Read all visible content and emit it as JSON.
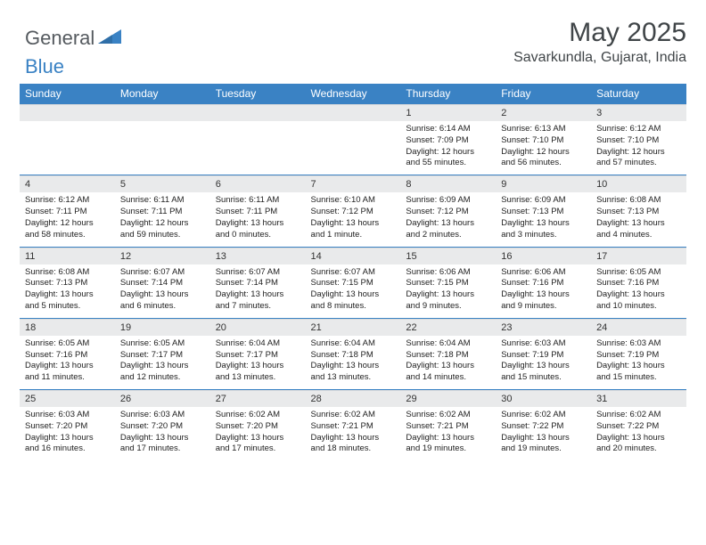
{
  "brand": {
    "name_part1": "General",
    "name_part2": "Blue",
    "accent_color": "#3a82c4",
    "text_color": "#555a5f"
  },
  "header": {
    "month_title": "May 2025",
    "location": "Savarkundla, Gujarat, India"
  },
  "colors": {
    "header_bg": "#3a82c4",
    "header_text": "#ffffff",
    "daynum_bg": "#e9eaeb",
    "body_text": "#222222",
    "page_bg": "#ffffff",
    "rule": "#3a82c4"
  },
  "daynames": [
    "Sunday",
    "Monday",
    "Tuesday",
    "Wednesday",
    "Thursday",
    "Friday",
    "Saturday"
  ],
  "weeks": [
    [
      null,
      null,
      null,
      null,
      {
        "n": "1",
        "sunrise": "6:14 AM",
        "sunset": "7:09 PM",
        "daylight": "12 hours and 55 minutes."
      },
      {
        "n": "2",
        "sunrise": "6:13 AM",
        "sunset": "7:10 PM",
        "daylight": "12 hours and 56 minutes."
      },
      {
        "n": "3",
        "sunrise": "6:12 AM",
        "sunset": "7:10 PM",
        "daylight": "12 hours and 57 minutes."
      }
    ],
    [
      {
        "n": "4",
        "sunrise": "6:12 AM",
        "sunset": "7:11 PM",
        "daylight": "12 hours and 58 minutes."
      },
      {
        "n": "5",
        "sunrise": "6:11 AM",
        "sunset": "7:11 PM",
        "daylight": "12 hours and 59 minutes."
      },
      {
        "n": "6",
        "sunrise": "6:11 AM",
        "sunset": "7:11 PM",
        "daylight": "13 hours and 0 minutes."
      },
      {
        "n": "7",
        "sunrise": "6:10 AM",
        "sunset": "7:12 PM",
        "daylight": "13 hours and 1 minute."
      },
      {
        "n": "8",
        "sunrise": "6:09 AM",
        "sunset": "7:12 PM",
        "daylight": "13 hours and 2 minutes."
      },
      {
        "n": "9",
        "sunrise": "6:09 AM",
        "sunset": "7:13 PM",
        "daylight": "13 hours and 3 minutes."
      },
      {
        "n": "10",
        "sunrise": "6:08 AM",
        "sunset": "7:13 PM",
        "daylight": "13 hours and 4 minutes."
      }
    ],
    [
      {
        "n": "11",
        "sunrise": "6:08 AM",
        "sunset": "7:13 PM",
        "daylight": "13 hours and 5 minutes."
      },
      {
        "n": "12",
        "sunrise": "6:07 AM",
        "sunset": "7:14 PM",
        "daylight": "13 hours and 6 minutes."
      },
      {
        "n": "13",
        "sunrise": "6:07 AM",
        "sunset": "7:14 PM",
        "daylight": "13 hours and 7 minutes."
      },
      {
        "n": "14",
        "sunrise": "6:07 AM",
        "sunset": "7:15 PM",
        "daylight": "13 hours and 8 minutes."
      },
      {
        "n": "15",
        "sunrise": "6:06 AM",
        "sunset": "7:15 PM",
        "daylight": "13 hours and 9 minutes."
      },
      {
        "n": "16",
        "sunrise": "6:06 AM",
        "sunset": "7:16 PM",
        "daylight": "13 hours and 9 minutes."
      },
      {
        "n": "17",
        "sunrise": "6:05 AM",
        "sunset": "7:16 PM",
        "daylight": "13 hours and 10 minutes."
      }
    ],
    [
      {
        "n": "18",
        "sunrise": "6:05 AM",
        "sunset": "7:16 PM",
        "daylight": "13 hours and 11 minutes."
      },
      {
        "n": "19",
        "sunrise": "6:05 AM",
        "sunset": "7:17 PM",
        "daylight": "13 hours and 12 minutes."
      },
      {
        "n": "20",
        "sunrise": "6:04 AM",
        "sunset": "7:17 PM",
        "daylight": "13 hours and 13 minutes."
      },
      {
        "n": "21",
        "sunrise": "6:04 AM",
        "sunset": "7:18 PM",
        "daylight": "13 hours and 13 minutes."
      },
      {
        "n": "22",
        "sunrise": "6:04 AM",
        "sunset": "7:18 PM",
        "daylight": "13 hours and 14 minutes."
      },
      {
        "n": "23",
        "sunrise": "6:03 AM",
        "sunset": "7:19 PM",
        "daylight": "13 hours and 15 minutes."
      },
      {
        "n": "24",
        "sunrise": "6:03 AM",
        "sunset": "7:19 PM",
        "daylight": "13 hours and 15 minutes."
      }
    ],
    [
      {
        "n": "25",
        "sunrise": "6:03 AM",
        "sunset": "7:20 PM",
        "daylight": "13 hours and 16 minutes."
      },
      {
        "n": "26",
        "sunrise": "6:03 AM",
        "sunset": "7:20 PM",
        "daylight": "13 hours and 17 minutes."
      },
      {
        "n": "27",
        "sunrise": "6:02 AM",
        "sunset": "7:20 PM",
        "daylight": "13 hours and 17 minutes."
      },
      {
        "n": "28",
        "sunrise": "6:02 AM",
        "sunset": "7:21 PM",
        "daylight": "13 hours and 18 minutes."
      },
      {
        "n": "29",
        "sunrise": "6:02 AM",
        "sunset": "7:21 PM",
        "daylight": "13 hours and 19 minutes."
      },
      {
        "n": "30",
        "sunrise": "6:02 AM",
        "sunset": "7:22 PM",
        "daylight": "13 hours and 19 minutes."
      },
      {
        "n": "31",
        "sunrise": "6:02 AM",
        "sunset": "7:22 PM",
        "daylight": "13 hours and 20 minutes."
      }
    ]
  ],
  "labels": {
    "sunrise": "Sunrise:",
    "sunset": "Sunset:",
    "daylight": "Daylight:"
  }
}
